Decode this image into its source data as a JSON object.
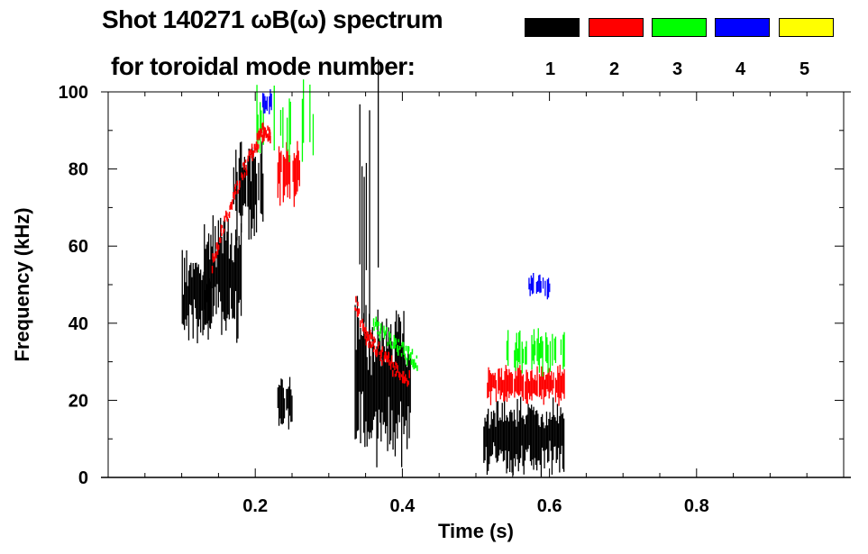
{
  "chart_data": {
    "type": "heatmap",
    "title_line1": "Shot 140271 ωB(ω) spectrum",
    "title_line2": "for toroidal mode number:",
    "xlabel": "Time (s)",
    "ylabel": "Frequency (kHz)",
    "xlim": [
      0.0,
      1.0
    ],
    "ylim": [
      0,
      100
    ],
    "xticks": [
      0.2,
      0.4,
      0.6,
      0.8
    ],
    "xtick_labels": [
      "0.2",
      "0.4",
      "0.6",
      "0.8"
    ],
    "yticks": [
      0,
      20,
      40,
      60,
      80,
      100
    ],
    "ytick_labels": [
      "0",
      "20",
      "40",
      "60",
      "80",
      "100"
    ],
    "legend": [
      {
        "mode": "1",
        "color": "#000000"
      },
      {
        "mode": "2",
        "color": "#ff0000"
      },
      {
        "mode": "3",
        "color": "#00ff00"
      },
      {
        "mode": "4",
        "color": "#0000ff"
      },
      {
        "mode": "5",
        "color": "#ffff00"
      }
    ],
    "regions": [
      {
        "mode": 1,
        "t": [
          0.1,
          0.14
        ],
        "f": [
          38,
          56
        ],
        "density": 1.0
      },
      {
        "mode": 1,
        "t": [
          0.13,
          0.18
        ],
        "f": [
          40,
          65
        ],
        "density": 1.0
      },
      {
        "mode": 1,
        "t": [
          0.17,
          0.21
        ],
        "f": [
          62,
          85
        ],
        "density": 0.8
      },
      {
        "mode": 1,
        "t": [
          0.23,
          0.25
        ],
        "f": [
          14,
          26
        ],
        "density": 0.8
      },
      {
        "mode": 1,
        "t": [
          0.335,
          0.41
        ],
        "f": [
          8,
          40
        ],
        "density": 1.0
      },
      {
        "mode": 1,
        "t": [
          0.34,
          0.37
        ],
        "f": [
          40,
          100
        ],
        "density": 0.3
      },
      {
        "mode": 1,
        "t": [
          0.51,
          0.62
        ],
        "f": [
          3,
          18
        ],
        "density": 1.0
      },
      {
        "mode": 2,
        "t": [
          0.515,
          0.62
        ],
        "f": [
          20,
          28
        ],
        "density": 0.9
      },
      {
        "mode": 2,
        "t": [
          0.23,
          0.26
        ],
        "f": [
          73,
          86
        ],
        "density": 0.7
      },
      {
        "mode": 3,
        "t": [
          0.2,
          0.28
        ],
        "f": [
          84,
          100
        ],
        "density": 0.4
      },
      {
        "mode": 3,
        "t": [
          0.54,
          0.62
        ],
        "f": [
          28,
          37
        ],
        "density": 0.7
      },
      {
        "mode": 4,
        "t": [
          0.57,
          0.6
        ],
        "f": [
          47,
          52
        ],
        "density": 0.7
      },
      {
        "mode": 4,
        "t": [
          0.205,
          0.225
        ],
        "f": [
          95,
          100
        ],
        "density": 0.5
      }
    ],
    "tracks": [
      {
        "mode": 2,
        "t": [
          0.14,
          0.16,
          0.18,
          0.2,
          0.21,
          0.22
        ],
        "f": [
          55,
          68,
          78,
          86,
          90,
          88
        ]
      },
      {
        "mode": 2,
        "t": [
          0.335,
          0.35,
          0.37,
          0.39,
          0.41
        ],
        "f": [
          45,
          37,
          32,
          28,
          25
        ]
      },
      {
        "mode": 3,
        "t": [
          0.36,
          0.38,
          0.4,
          0.42
        ],
        "f": [
          40,
          36,
          33,
          30
        ]
      }
    ]
  }
}
